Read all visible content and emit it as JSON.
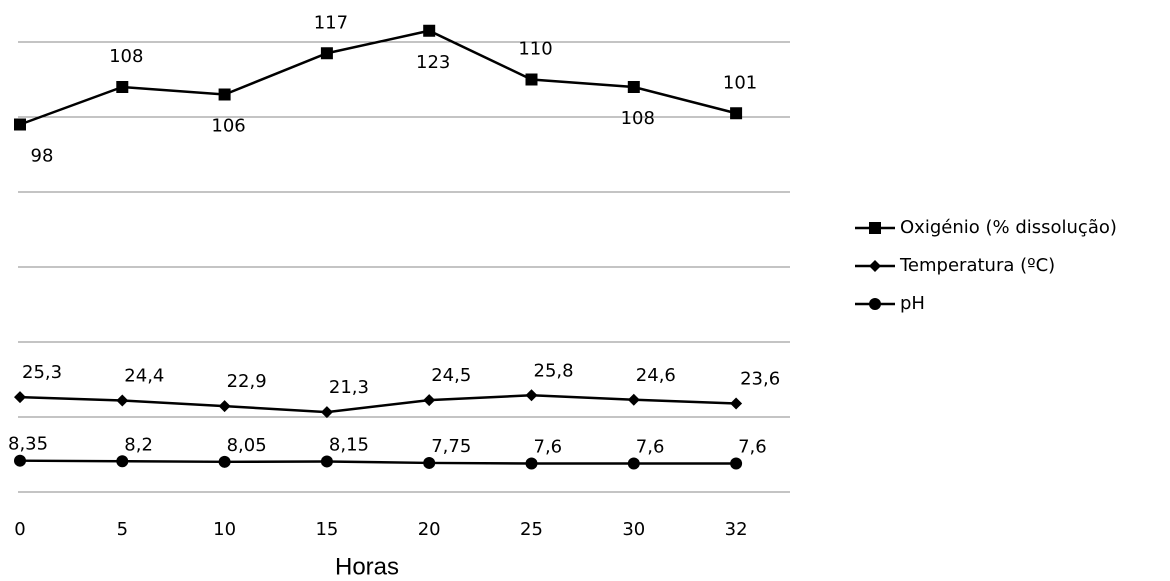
{
  "chart_data": {
    "type": "line",
    "x_label": "Horas",
    "categories": [
      "0",
      "5",
      "10",
      "15",
      "20",
      "25",
      "30",
      "32"
    ],
    "ylim": [
      0,
      130
    ],
    "yticks": [
      0,
      20,
      40,
      60,
      80,
      100,
      120
    ],
    "grid": true,
    "series": [
      {
        "name": "Oxigénio (% dissolução)",
        "color": "#000000",
        "marker": "square",
        "values": [
          98,
          108,
          106,
          117,
          123,
          110,
          108,
          101
        ]
      },
      {
        "name": "Temperatura (ºC)",
        "color": "#000000",
        "marker": "diamond",
        "values": [
          25.3,
          24.4,
          22.9,
          21.3,
          24.5,
          25.8,
          24.6,
          23.6
        ],
        "value_labels": [
          "25,3",
          "24,4",
          "22,9",
          "21,3",
          "24,5",
          "25,8",
          "24,6",
          "23,6"
        ]
      },
      {
        "name": "pH",
        "color": "#000000",
        "marker": "circle",
        "values": [
          8.35,
          8.2,
          8.05,
          8.15,
          7.75,
          7.6,
          7.6,
          7.6
        ],
        "value_labels": [
          "8,35",
          "8,2",
          "8,05",
          "8,15",
          "7,75",
          "7,6",
          "7,6",
          "7,6"
        ]
      }
    ]
  }
}
